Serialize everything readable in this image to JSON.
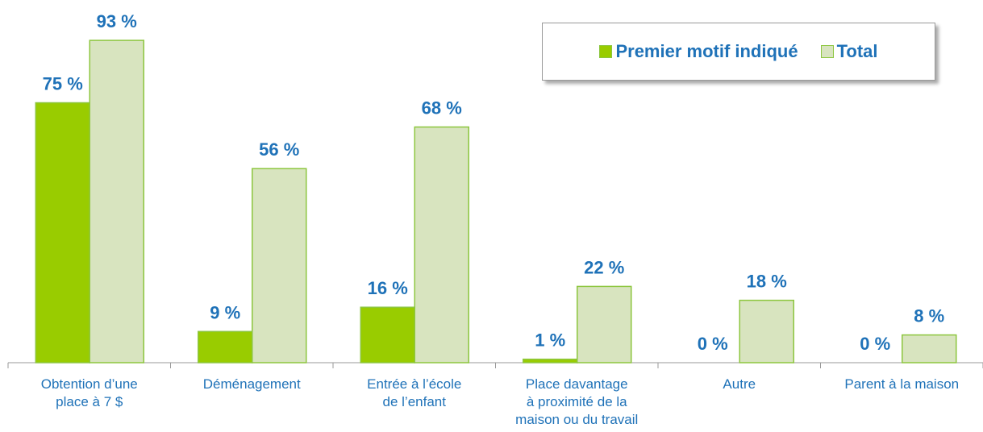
{
  "chart_data": {
    "type": "bar",
    "categories": [
      "Obtention d’une\nplace à 7 $",
      "Déménagement",
      "Entrée à l’école\nde l’enfant",
      "Place davantage\nà proximité de la\nmaison ou du travail",
      "Autre",
      "Parent à la maison"
    ],
    "series": [
      {
        "name": "Premier motif indiqué",
        "color": "#99cc00",
        "values": [
          75,
          9,
          16,
          1,
          0,
          0
        ],
        "value_labels": [
          "75 %",
          "9 %",
          "16 %",
          "1 %",
          "0 %",
          "0 %"
        ]
      },
      {
        "name": "Total",
        "color": "#d8e4bf",
        "values": [
          93,
          56,
          68,
          22,
          18,
          8
        ],
        "value_labels": [
          "93 %",
          "56 %",
          "68 %",
          "22 %",
          "18 %",
          "8 %"
        ]
      }
    ],
    "ylim": [
      0,
      100
    ]
  }
}
